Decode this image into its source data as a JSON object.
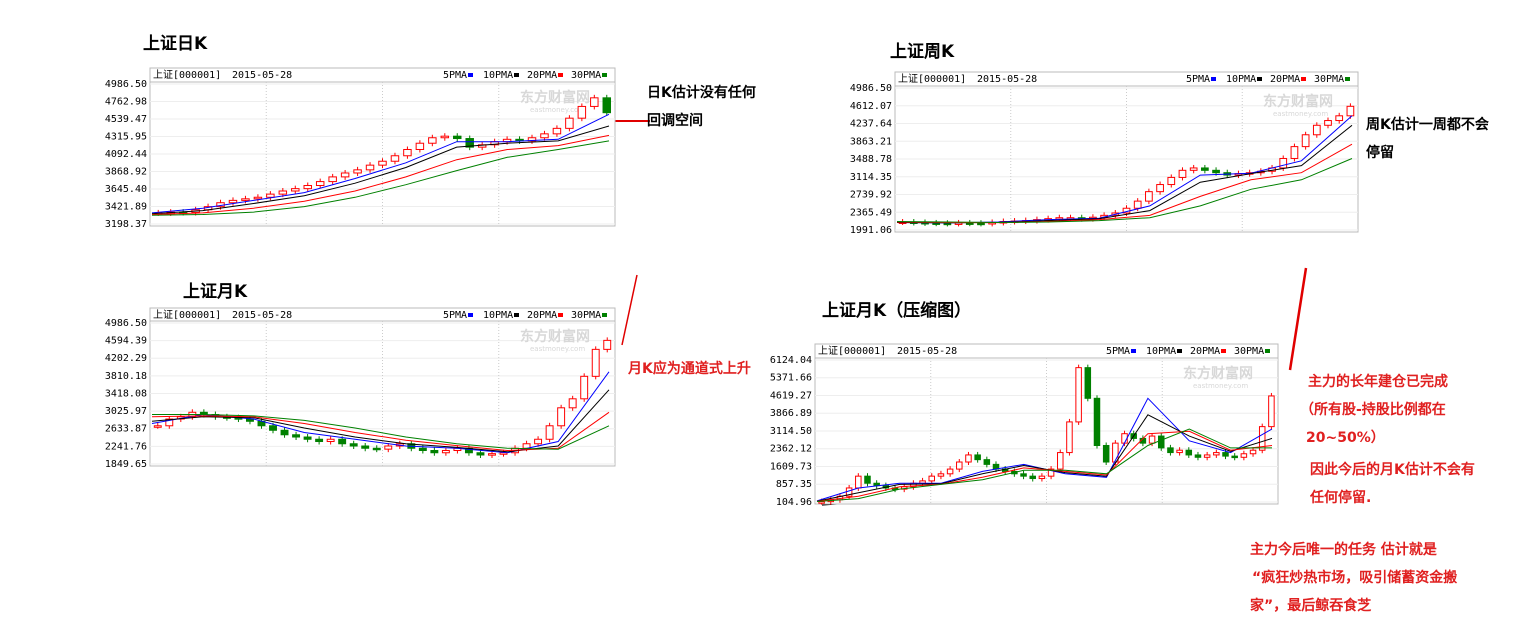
{
  "chart_data": [
    {
      "type": "candlestick",
      "title": "上证日K",
      "symbol": "上证[000001]",
      "date": "2015-05-28",
      "watermark": "东方财富网",
      "watermark_sub": "eastmoney.com",
      "up_color": "#ff0000",
      "down_color": "#008000",
      "grid": true,
      "ylim": [
        3198.37,
        4986.5
      ],
      "yticks": [
        {
          "value": 4986.5,
          "label": "4986.50"
        },
        {
          "value": 4762.98,
          "label": "4762.98"
        },
        {
          "value": 4539.47,
          "label": "4539.47"
        },
        {
          "value": 4315.95,
          "label": "4315.95"
        },
        {
          "value": 4092.44,
          "label": "4092.44"
        },
        {
          "value": 3868.92,
          "label": "3868.92"
        },
        {
          "value": 3645.4,
          "label": "3645.40"
        },
        {
          "value": 3421.89,
          "label": "3421.89"
        },
        {
          "value": 3198.37,
          "label": "3198.37"
        }
      ],
      "values": [
        3340,
        3350,
        3345,
        3380,
        3420,
        3470,
        3500,
        3520,
        3540,
        3580,
        3620,
        3650,
        3690,
        3740,
        3800,
        3850,
        3890,
        3950,
        4000,
        4070,
        4150,
        4230,
        4300,
        4320,
        4290,
        4180,
        4210,
        4250,
        4280,
        4260,
        4300,
        4350,
        4420,
        4550,
        4700,
        4810,
        4620
      ],
      "series": [
        {
          "name": "5PMA",
          "color": "#0000ff",
          "values": [
            3340,
            3400,
            3500,
            3600,
            3780,
            3980,
            4250,
            4250,
            4280,
            4600
          ]
        },
        {
          "name": "10PMA",
          "color": "#000000",
          "values": [
            3330,
            3370,
            3460,
            3560,
            3720,
            3920,
            4180,
            4230,
            4260,
            4450
          ]
        },
        {
          "name": "20PMA",
          "color": "#ff0000",
          "values": [
            3320,
            3340,
            3400,
            3490,
            3620,
            3800,
            4020,
            4150,
            4200,
            4330
          ]
        },
        {
          "name": "30PMA",
          "color": "#008000",
          "values": [
            3310,
            3320,
            3350,
            3420,
            3540,
            3700,
            3880,
            4050,
            4150,
            4260
          ]
        }
      ]
    },
    {
      "type": "candlestick",
      "title": "上证周K",
      "symbol": "上证[000001]",
      "date": "2015-05-28",
      "watermark": "东方财富网",
      "watermark_sub": "eastmoney.com",
      "up_color": "#ff0000",
      "down_color": "#008000",
      "grid": true,
      "ylim": [
        1991.06,
        4986.5
      ],
      "yticks": [
        {
          "value": 4986.5,
          "label": "4986.50"
        },
        {
          "value": 4612.07,
          "label": "4612.07"
        },
        {
          "value": 4237.64,
          "label": "4237.64"
        },
        {
          "value": 3863.21,
          "label": "3863.21"
        },
        {
          "value": 3488.78,
          "label": "3488.78"
        },
        {
          "value": 3114.35,
          "label": "3114.35"
        },
        {
          "value": 2739.92,
          "label": "2739.92"
        },
        {
          "value": 2365.49,
          "label": "2365.49"
        },
        {
          "value": 1991.06,
          "label": "1991.06"
        }
      ],
      "values": [
        2160,
        2150,
        2140,
        2135,
        2130,
        2140,
        2135,
        2130,
        2150,
        2170,
        2180,
        2190,
        2210,
        2230,
        2250,
        2250,
        2230,
        2260,
        2300,
        2350,
        2450,
        2600,
        2800,
        2950,
        3100,
        3250,
        3300,
        3250,
        3200,
        3150,
        3180,
        3200,
        3230,
        3300,
        3500,
        3750,
        4000,
        4200,
        4300,
        4400,
        4600
      ],
      "series": [
        {
          "name": "5PMA",
          "color": "#0000ff",
          "values": [
            2150,
            2140,
            2160,
            2210,
            2240,
            2500,
            3150,
            3190,
            3450,
            4400
          ]
        },
        {
          "name": "10PMA",
          "color": "#000000",
          "values": [
            2150,
            2145,
            2150,
            2190,
            2230,
            2400,
            3000,
            3180,
            3350,
            4200
          ]
        },
        {
          "name": "20PMA",
          "color": "#ff0000",
          "values": [
            2160,
            2150,
            2148,
            2170,
            2210,
            2300,
            2700,
            3050,
            3200,
            3800
          ]
        },
        {
          "name": "30PMA",
          "color": "#008000",
          "values": [
            2170,
            2160,
            2150,
            2160,
            2190,
            2250,
            2500,
            2850,
            3050,
            3500
          ]
        }
      ]
    },
    {
      "type": "candlestick",
      "title": "上证月K",
      "symbol": "上证[000001]",
      "date": "2015-05-28",
      "watermark": "东方财富网",
      "watermark_sub": "eastmoney.com",
      "up_color": "#ff0000",
      "down_color": "#008000",
      "grid": true,
      "ylim": [
        1849.65,
        4986.5
      ],
      "yticks": [
        {
          "value": 4986.5,
          "label": "4986.50"
        },
        {
          "value": 4594.39,
          "label": "4594.39"
        },
        {
          "value": 4202.29,
          "label": "4202.29"
        },
        {
          "value": 3810.18,
          "label": "3810.18"
        },
        {
          "value": 3418.08,
          "label": "3418.08"
        },
        {
          "value": 3025.97,
          "label": "3025.97"
        },
        {
          "value": 2633.87,
          "label": "2633.87"
        },
        {
          "value": 2241.76,
          "label": "2241.76"
        },
        {
          "value": 1849.65,
          "label": "1849.65"
        }
      ],
      "values": [
        2700,
        2850,
        2900,
        3000,
        2950,
        2900,
        2880,
        2850,
        2800,
        2700,
        2600,
        2500,
        2450,
        2400,
        2350,
        2400,
        2300,
        2250,
        2200,
        2180,
        2250,
        2300,
        2200,
        2150,
        2100,
        2150,
        2200,
        2100,
        2050,
        2080,
        2100,
        2200,
        2300,
        2400,
        2700,
        3100,
        3300,
        3800,
        4400,
        4600
      ],
      "series": [
        {
          "name": "5PMA",
          "color": "#0000ff",
          "values": [
            2750,
            2950,
            2850,
            2550,
            2400,
            2250,
            2200,
            2100,
            2350,
            3900
          ]
        },
        {
          "name": "10PMA",
          "color": "#000000",
          "values": [
            2800,
            2900,
            2880,
            2650,
            2450,
            2300,
            2220,
            2120,
            2250,
            3500
          ]
        },
        {
          "name": "20PMA",
          "color": "#ff0000",
          "values": [
            2900,
            2920,
            2900,
            2750,
            2550,
            2380,
            2260,
            2150,
            2200,
            3000
          ]
        },
        {
          "name": "30PMA",
          "color": "#008000",
          "values": [
            2950,
            2950,
            2920,
            2820,
            2650,
            2450,
            2300,
            2200,
            2180,
            2700
          ]
        }
      ]
    },
    {
      "type": "candlestick",
      "title": "上证月K（压缩图）",
      "symbol": "上证[000001]",
      "date": "2015-05-28",
      "watermark": "东方财富网",
      "watermark_sub": "eastmoney.com",
      "up_color": "#ff0000",
      "down_color": "#008000",
      "grid": true,
      "ylim": [
        104.96,
        6124.04
      ],
      "yticks": [
        {
          "value": 6124.04,
          "label": "6124.04"
        },
        {
          "value": 5371.66,
          "label": "5371.66"
        },
        {
          "value": 4619.27,
          "label": "4619.27"
        },
        {
          "value": 3866.89,
          "label": "3866.89"
        },
        {
          "value": 3114.5,
          "label": "3114.50"
        },
        {
          "value": 2362.12,
          "label": "2362.12"
        },
        {
          "value": 1609.73,
          "label": "1609.73"
        },
        {
          "value": 857.35,
          "label": "857.35"
        },
        {
          "value": 104.96,
          "label": "104.96"
        }
      ],
      "values": [
        120,
        200,
        350,
        700,
        1200,
        900,
        800,
        700,
        650,
        750,
        900,
        1000,
        1200,
        1300,
        1500,
        1800,
        2100,
        1900,
        1700,
        1500,
        1400,
        1300,
        1200,
        1100,
        1200,
        1500,
        2200,
        3500,
        5800,
        4500,
        2500,
        1800,
        2600,
        3000,
        2800,
        2600,
        2900,
        2400,
        2200,
        2300,
        2100,
        2000,
        2100,
        2200,
        2050,
        2000,
        2150,
        2300,
        3300,
        4600
      ],
      "series": [
        {
          "name": "5PMA",
          "color": "#0000ff",
          "values": [
            150,
            700,
            900,
            900,
            1400,
            1700,
            1300,
            1150,
            4500,
            2700,
            2200,
            3200
          ]
        },
        {
          "name": "10PMA",
          "color": "#000000",
          "values": [
            140,
            500,
            850,
            880,
            1300,
            1650,
            1350,
            1200,
            3800,
            2900,
            2250,
            2800
          ]
        },
        {
          "name": "20PMA",
          "color": "#ff0000",
          "values": [
            130,
            350,
            750,
            860,
            1150,
            1550,
            1400,
            1250,
            3000,
            3100,
            2300,
            2500
          ]
        },
        {
          "name": "30PMA",
          "color": "#008000",
          "values": [
            125,
            250,
            650,
            850,
            1050,
            1450,
            1450,
            1300,
            2500,
            3200,
            2400,
            2400
          ]
        }
      ]
    }
  ],
  "annotations": [
    "日K估计没有任何",
    "回调空间",
    "周K估计一周都不会",
    "停留",
    "月K应为通道式上升",
    "主力的长年建仓已完成",
    "（所有股-持股比例都在",
    "20~50%）",
    "因此今后的月K估计不会有",
    "任何停留.",
    "主力今后唯一的任务 估计就是",
    "“疯狂炒热市场，吸引储蓄资金搬",
    "家”，最后鲸吞食芝"
  ]
}
